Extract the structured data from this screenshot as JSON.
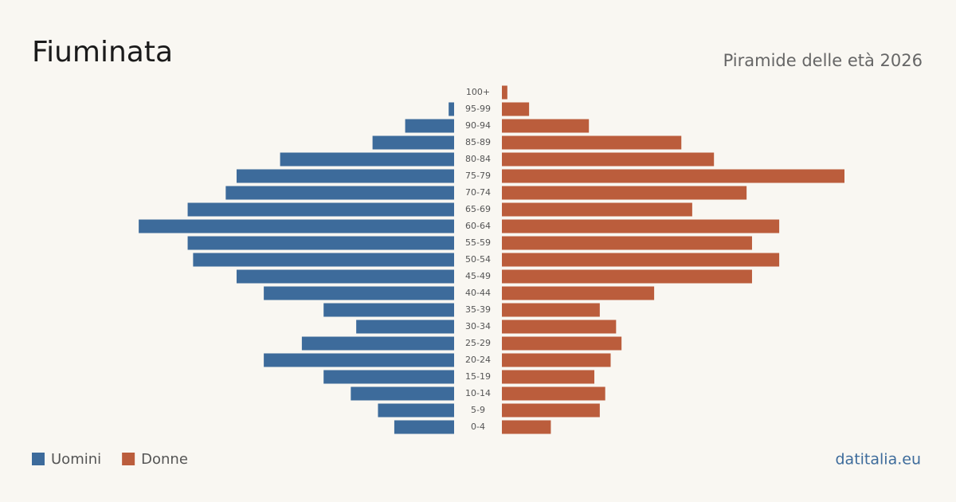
{
  "chart_data": {
    "type": "pyramid",
    "title": "Fiuminata",
    "subtitle": "Piramide delle età 2026",
    "source": "datitalia.eu",
    "categories": [
      "100+",
      "95-99",
      "90-94",
      "85-89",
      "80-84",
      "75-79",
      "70-74",
      "65-69",
      "60-64",
      "55-59",
      "50-54",
      "45-49",
      "40-44",
      "35-39",
      "30-34",
      "25-29",
      "20-24",
      "15-19",
      "10-14",
      "5-9",
      "0-4"
    ],
    "series": [
      {
        "name": "Uomini",
        "color": "#3d6b9b",
        "values": [
          0,
          1,
          9,
          15,
          32,
          40,
          42,
          49,
          58,
          49,
          48,
          40,
          35,
          24,
          18,
          28,
          35,
          24,
          19,
          14,
          11
        ]
      },
      {
        "name": "Donne",
        "color": "#bb5d3c",
        "values": [
          1,
          5,
          16,
          33,
          39,
          63,
          45,
          35,
          51,
          46,
          51,
          46,
          28,
          18,
          21,
          22,
          20,
          17,
          19,
          18,
          9
        ]
      }
    ]
  }
}
